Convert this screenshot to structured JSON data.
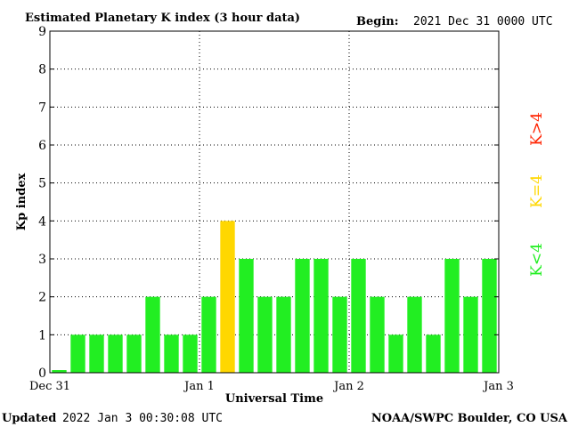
{
  "header": {
    "title": "Estimated Planetary K index (3 hour data)",
    "begin_label": "Begin:",
    "begin_value": "2021 Dec 31 0000 UTC"
  },
  "footer": {
    "updated_label": "Updated",
    "updated_value": "2022 Jan  3 00:30:08 UTC",
    "credit": "NOAA/SWPC Boulder, CO USA"
  },
  "legend": {
    "k_lt_4": "K<4",
    "k_eq_4": "K=4",
    "k_gt_4": "K>4"
  },
  "colors": {
    "k_lt_4": "#22ee22",
    "k_eq_4": "#ffd700",
    "k_gt_4": "#ff2200"
  },
  "chart_data": {
    "type": "bar",
    "title": "Estimated Planetary K index (3 hour data)",
    "xlabel": "Universal Time",
    "ylabel": "Kp index",
    "ylim": [
      0,
      9
    ],
    "yticks": [
      0,
      1,
      2,
      3,
      4,
      5,
      6,
      7,
      8,
      9
    ],
    "xtick_labels": [
      "Dec 31",
      "Jan 1",
      "Jan 2",
      "Jan 3"
    ],
    "grid": "dotted",
    "values": [
      0,
      1,
      1,
      1,
      1,
      2,
      1,
      1,
      2,
      4,
      3,
      2,
      2,
      3,
      3,
      2,
      3,
      2,
      1,
      2,
      1,
      3,
      2,
      3
    ]
  }
}
